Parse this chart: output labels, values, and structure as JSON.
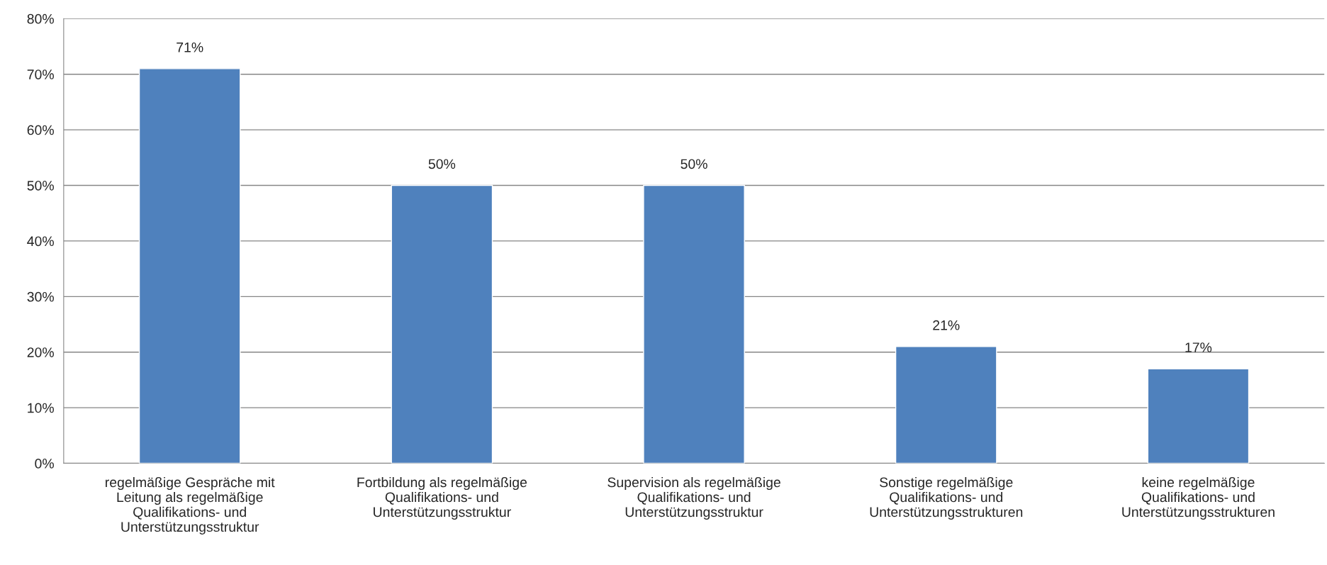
{
  "chart_data": {
    "type": "bar",
    "categories": [
      "regelmäßige Gespräche mit\nLeitung als regelmäßige\nQualifikations- und\nUnterstützungsstruktur",
      "Fortbildung als regelmäßige\nQualifikations- und\nUnterstützungsstruktur",
      "Supervision als regelmäßige\nQualifikations- und\nUnterstützungsstruktur",
      "Sonstige regelmäßige\nQualifikations- und\nUnterstützungsstrukturen",
      "keine regelmäßige\nQualifikations- und\nUnterstützungsstrukturen"
    ],
    "values": [
      71,
      50,
      50,
      21,
      17
    ],
    "value_labels": [
      "71%",
      "50%",
      "50%",
      "21%",
      "17%"
    ],
    "color": "#4f81bd",
    "ylim": [
      0,
      80
    ],
    "yticks": [
      {
        "value": 0,
        "label": "0%"
      },
      {
        "value": 10,
        "label": "10%"
      },
      {
        "value": 20,
        "label": "20%"
      },
      {
        "value": 30,
        "label": "30%"
      },
      {
        "value": 40,
        "label": "40%"
      },
      {
        "value": 50,
        "label": "50%"
      },
      {
        "value": 60,
        "label": "60%"
      },
      {
        "value": 70,
        "label": "70%"
      },
      {
        "value": 80,
        "label": "80%"
      }
    ],
    "grid": "y"
  }
}
